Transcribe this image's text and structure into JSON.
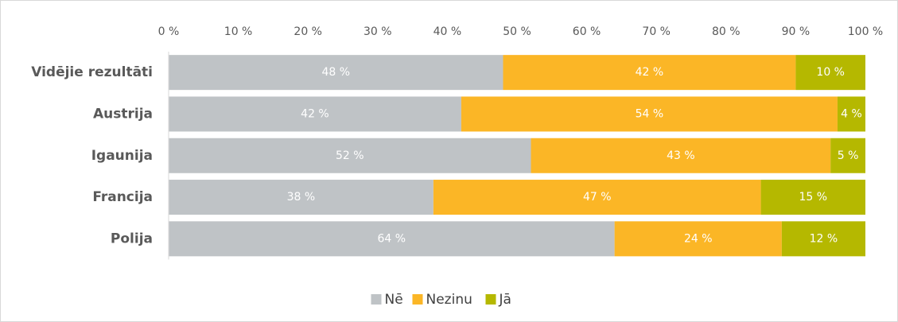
{
  "chart_data": {
    "type": "stacked-bar-horizontal",
    "categories": [
      "Vidējie rezultāti",
      "Austrija",
      "Igaunija",
      "Francija",
      "Polija"
    ],
    "series": [
      {
        "name": "Nē",
        "color": "#bfc3c6",
        "values": [
          48,
          42,
          52,
          38,
          64
        ],
        "value_labels": [
          "48 %",
          "42 %",
          "52 %",
          "38 %",
          "64 %"
        ]
      },
      {
        "name": "Nezinu",
        "color": "#fbb626",
        "values": [
          42,
          54,
          43,
          47,
          24
        ],
        "value_labels": [
          "42 %",
          "54 %",
          "43 %",
          "47 %",
          "24 %"
        ]
      },
      {
        "name": "Jā",
        "color": "#b5b800",
        "values": [
          10,
          4,
          5,
          15,
          12
        ],
        "value_labels": [
          "10 %",
          "4 %",
          "5 %",
          "15 %",
          "12 %"
        ]
      }
    ],
    "xlim": [
      0,
      100
    ],
    "xticks": [
      {
        "value": 0,
        "label": "0 %"
      },
      {
        "value": 10,
        "label": "10 %"
      },
      {
        "value": 20,
        "label": "20 %"
      },
      {
        "value": 30,
        "label": "30 %"
      },
      {
        "value": 40,
        "label": "40 %"
      },
      {
        "value": 50,
        "label": "50 %"
      },
      {
        "value": 60,
        "label": "60 %"
      },
      {
        "value": 70,
        "label": "70 %"
      },
      {
        "value": 80,
        "label": "80 %"
      },
      {
        "value": 90,
        "label": "90 %"
      },
      {
        "value": 100,
        "label": "100 %"
      }
    ],
    "legend": "bottom"
  }
}
